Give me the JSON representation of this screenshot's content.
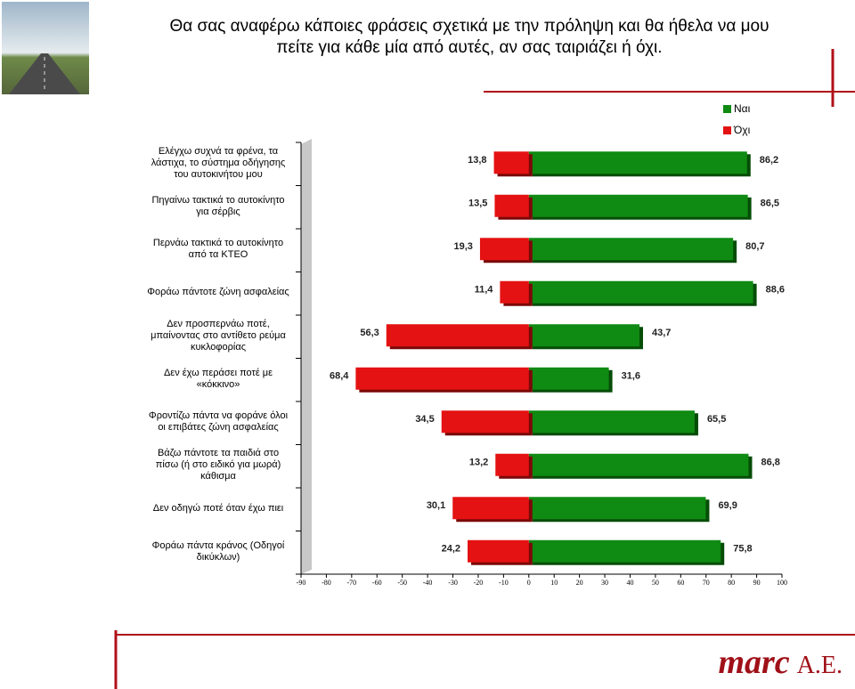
{
  "chart_data": {
    "type": "diverging-bar",
    "title": "Θα σας αναφέρω κάποιες φράσεις σχετικά με την πρόληψη και θα ήθελα να μου\nπείτε για κάθε μία από αυτές, αν σας ταιριάζει ή όχι.",
    "categories": [
      "Ελέγχω συχνά τα φρένα, τα\nλάστιχα, το σύστημα οδήγησης\nτου αυτοκινήτου μου",
      "Πηγαίνω τακτικά το αυτοκίνητο\nγια σέρβις",
      "Περνάω τακτικά το αυτοκίνητο\nαπό τα ΚΤΕΟ",
      "Φοράω πάντοτε ζώνη ασφαλείας",
      "Δεν προσπερνάω ποτέ,\nμπαίνοντας στο αντίθετο ρεύμα\nκυκλοφορίας",
      "Δεν έχω περάσει ποτέ με\n«κόκκινο»",
      "Φροντίζω πάντα να φοράνε όλοι\nοι επιβάτες ζώνη ασφαλείας",
      "Βάζω πάντοτε τα παιδιά στο\nπίσω (ή στο ειδικό για μωρά)\nκάθισμα",
      "Δεν οδηγώ ποτέ όταν έχω πιει",
      "Φοράω πάντα κράνος (Οδηγοί\nδικύκλων)"
    ],
    "series": [
      {
        "name": "Ναι",
        "color": "#0f8a12",
        "values": [
          86.2,
          86.5,
          80.7,
          88.6,
          43.7,
          31.6,
          65.5,
          86.8,
          69.9,
          75.8
        ],
        "value_labels": [
          "86,2",
          "86,5",
          "80,7",
          "88,6",
          "43,7",
          "31,6",
          "65,5",
          "86,8",
          "69,9",
          "75,8"
        ]
      },
      {
        "name": "Όχι",
        "color": "#e41212",
        "values": [
          -13.8,
          -13.5,
          -19.3,
          -11.4,
          -56.3,
          -68.4,
          -34.5,
          -13.2,
          -30.1,
          -24.2
        ],
        "value_labels": [
          "13,8",
          "13,5",
          "19,3",
          "11,4",
          "56,3",
          "68,4",
          "34,5",
          "13,2",
          "30,1",
          "24,2"
        ]
      }
    ],
    "xlim": [
      -90,
      100
    ],
    "xticks": [
      -90,
      -80,
      -70,
      -60,
      -50,
      -40,
      -30,
      -20,
      -10,
      0,
      10,
      20,
      30,
      40,
      50,
      60,
      70,
      80,
      90,
      100
    ],
    "legend": "top-right"
  },
  "logo": "marc",
  "logo_suffix": "A.E."
}
